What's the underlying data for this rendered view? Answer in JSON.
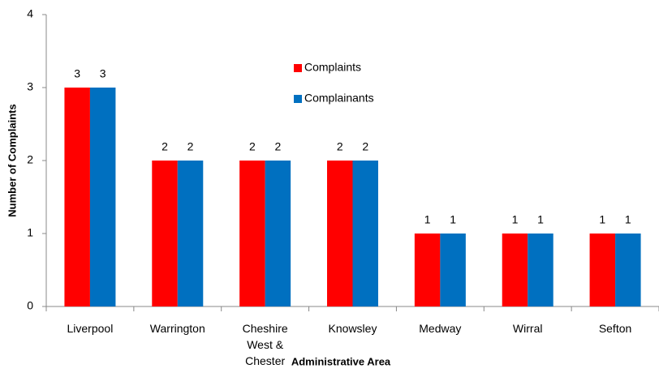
{
  "chart_data": {
    "type": "bar",
    "x_label": "Administrative Area",
    "y_label": "Number of Complaints",
    "categories": [
      "Liverpool",
      "Warrington",
      "Cheshire West & Chester",
      "Knowsley",
      "Medway",
      "Wirral",
      "Sefton"
    ],
    "series": [
      {
        "name": "Complaints",
        "color": "#ff0000",
        "values": [
          3,
          2,
          2,
          2,
          1,
          1,
          1
        ]
      },
      {
        "name": "Complainants",
        "color": "#0070c0",
        "values": [
          3,
          2,
          2,
          2,
          1,
          1,
          1
        ]
      }
    ],
    "ylim": [
      0,
      4
    ],
    "yticks": [
      0,
      1,
      2,
      3,
      4
    ],
    "grid": false,
    "legend": "upper center"
  }
}
